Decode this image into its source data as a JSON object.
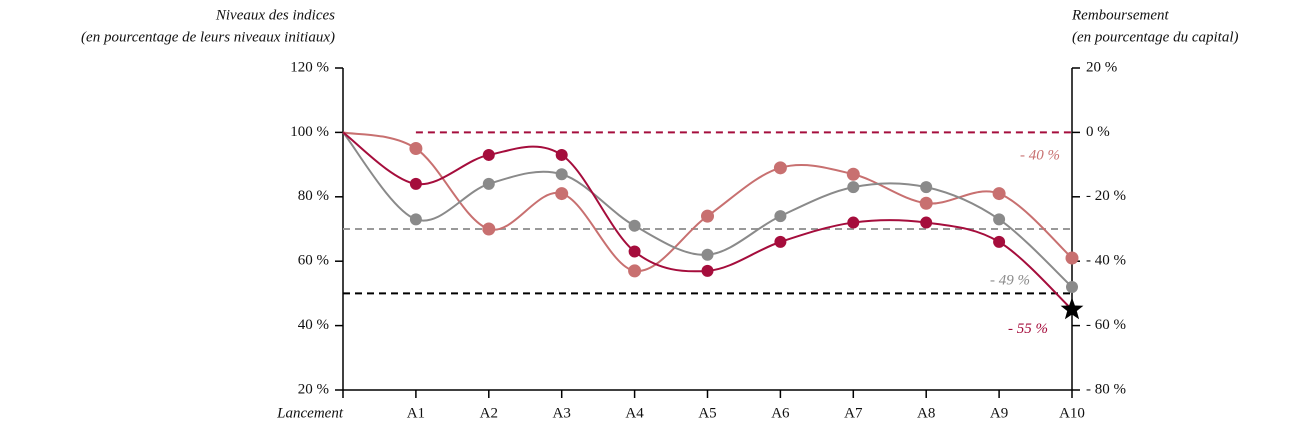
{
  "chart_data": {
    "type": "line",
    "y_label": [
      "Niveaux des indices",
      "(en pourcentage de leurs niveaux initiaux)"
    ],
    "y2_label": [
      "Remboursement",
      "(en pourcentage du capital)"
    ],
    "categories": [
      "Lancement",
      "A1",
      "A2",
      "A3",
      "A4",
      "A5",
      "A6",
      "A7",
      "A8",
      "A9",
      "A10"
    ],
    "ylim": [
      20,
      120
    ],
    "yticks": [
      {
        "value": 20,
        "label": "20 %"
      },
      {
        "value": 40,
        "label": "40 %"
      },
      {
        "value": 60,
        "label": "60 %"
      },
      {
        "value": 80,
        "label": "80 %"
      },
      {
        "value": 100,
        "label": "100 %"
      },
      {
        "value": 120,
        "label": "120 %"
      }
    ],
    "y2lim": [
      -80,
      20
    ],
    "y2ticks": [
      {
        "value": -80,
        "label": "- 80 %"
      },
      {
        "value": -60,
        "label": "- 60 %"
      },
      {
        "value": -40,
        "label": "- 40 %"
      },
      {
        "value": -20,
        "label": "- 20 %"
      },
      {
        "value": 0,
        "label": "0 %"
      },
      {
        "value": 20,
        "label": "20 %"
      }
    ],
    "reference_lines": [
      {
        "value": 100,
        "color": "#a50d3c"
      },
      {
        "value": 70,
        "color": "#999999"
      },
      {
        "value": 50,
        "color": "#000000"
      }
    ],
    "series": [
      {
        "color": "#c87070",
        "values": [
          100,
          95,
          70,
          81,
          57,
          74,
          89,
          87,
          78,
          81,
          61
        ],
        "end_label": "- 40 %"
      },
      {
        "color": "#8a8a8a",
        "values": [
          100,
          73,
          84,
          87,
          71,
          62,
          74,
          83,
          83,
          73,
          52
        ],
        "end_label": "- 49 %"
      },
      {
        "color": "#a50d3c",
        "values": [
          100,
          84,
          93,
          93,
          63,
          57,
          66,
          72,
          72,
          66,
          45
        ],
        "end_label": "- 55 %"
      }
    ]
  }
}
